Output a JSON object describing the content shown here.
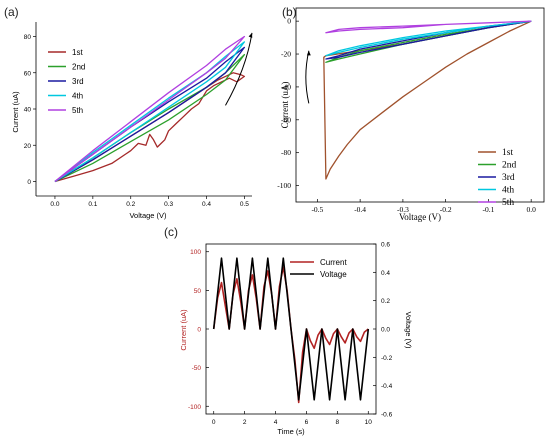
{
  "chart_data": [
    {
      "panel": "(a)",
      "type": "line",
      "xlabel": "Voltage (V)",
      "ylabel": "Current (uA)",
      "xlim": [
        -0.05,
        0.52
      ],
      "ylim": [
        -8,
        88
      ],
      "xticks": [
        "0.0",
        "0.1",
        "0.2",
        "0.3",
        "0.4",
        "0.5"
      ],
      "xtick_values": [
        0,
        0.1,
        0.2,
        0.3,
        0.4,
        0.5
      ],
      "yticks": [
        "0",
        "20",
        "40",
        "60",
        "80"
      ],
      "ytick_values": [
        0,
        20,
        40,
        60,
        80
      ],
      "legend_position": "top-left",
      "series": [
        {
          "name": "1st",
          "color": "#a52a2a",
          "x": [
            0,
            0.05,
            0.1,
            0.15,
            0.2,
            0.22,
            0.24,
            0.25,
            0.26,
            0.27,
            0.28,
            0.29,
            0.3,
            0.32,
            0.34,
            0.36,
            0.38,
            0.4,
            0.42,
            0.44,
            0.46,
            0.48,
            0.5,
            0.49,
            0.47,
            0.45,
            0.43,
            0.4,
            0.35,
            0.3,
            0.2,
            0.1,
            0
          ],
          "y": [
            0,
            3,
            6,
            10,
            17,
            21,
            20,
            26,
            23,
            19,
            21,
            23,
            28,
            32,
            36,
            40,
            43,
            50,
            53,
            55,
            57,
            55,
            58,
            59,
            60,
            58,
            56,
            52,
            45,
            38,
            25,
            12,
            0
          ]
        },
        {
          "name": "2nd",
          "color": "#2ca02c",
          "x": [
            0,
            0.1,
            0.2,
            0.3,
            0.4,
            0.45,
            0.5,
            0.45,
            0.4,
            0.3,
            0.2,
            0.1,
            0
          ],
          "y": [
            0,
            10,
            22,
            34,
            48,
            56,
            70,
            60,
            52,
            40,
            27,
            13,
            0
          ]
        },
        {
          "name": "3rd",
          "color": "#1a1aa0",
          "x": [
            0,
            0.1,
            0.2,
            0.3,
            0.4,
            0.45,
            0.5,
            0.45,
            0.4,
            0.3,
            0.2,
            0.1,
            0
          ],
          "y": [
            0,
            12,
            25,
            38,
            52,
            60,
            74,
            66,
            57,
            44,
            30,
            15,
            0
          ]
        },
        {
          "name": "4th",
          "color": "#00c8e0",
          "x": [
            0,
            0.1,
            0.2,
            0.3,
            0.4,
            0.45,
            0.5,
            0.45,
            0.4,
            0.3,
            0.2,
            0.1,
            0
          ],
          "y": [
            0,
            13,
            27,
            41,
            55,
            63,
            77,
            69,
            60,
            46,
            31,
            16,
            0
          ]
        },
        {
          "name": "5th",
          "color": "#b040e0",
          "x": [
            0,
            0.1,
            0.2,
            0.3,
            0.4,
            0.45,
            0.5,
            0.45,
            0.4,
            0.3,
            0.2,
            0.1,
            0
          ],
          "y": [
            0,
            15,
            30,
            45,
            60,
            68,
            80,
            73,
            64,
            49,
            33,
            17,
            0
          ]
        }
      ],
      "arrow": {
        "from": [
          0.45,
          42
        ],
        "to": [
          0.52,
          82
        ]
      }
    },
    {
      "panel": "(b)",
      "type": "line",
      "xlabel": "Voltage  (V)",
      "ylabel": "Current  (uA)",
      "xlim": [
        -0.55,
        0.03
      ],
      "ylim": [
        -110,
        8
      ],
      "xticks": [
        "-0.5",
        "-0.4",
        "-0.3",
        "-0.2",
        "-0.1",
        "0.0"
      ],
      "xtick_values": [
        -0.5,
        -0.4,
        -0.3,
        -0.2,
        -0.1,
        0
      ],
      "yticks": [
        "0",
        "-20",
        "-40",
        "-60",
        "-80",
        "-100"
      ],
      "ytick_values": [
        0,
        -20,
        -40,
        -60,
        -80,
        -100
      ],
      "legend_position": "bottom-right",
      "series": [
        {
          "name": "1st",
          "color": "#a0522d",
          "x": [
            0,
            -0.05,
            -0.1,
            -0.15,
            -0.2,
            -0.25,
            -0.3,
            -0.35,
            -0.4,
            -0.43,
            -0.45,
            -0.47,
            -0.48,
            -0.485,
            -0.48,
            -0.4,
            -0.3,
            -0.2,
            -0.1,
            0
          ],
          "y": [
            0,
            -6,
            -13,
            -20,
            -28,
            -37,
            -46,
            -56,
            -66,
            -75,
            -82,
            -90,
            -96,
            -22,
            -21,
            -18,
            -14,
            -9,
            -4,
            0
          ]
        },
        {
          "name": "2nd",
          "color": "#2ca02c",
          "x": [
            0,
            -0.1,
            -0.2,
            -0.3,
            -0.4,
            -0.45,
            -0.48,
            -0.45,
            -0.4,
            -0.3,
            -0.2,
            -0.1,
            0
          ],
          "y": [
            0,
            -4,
            -9,
            -14,
            -20,
            -23,
            -25,
            -22,
            -18,
            -13,
            -8,
            -4,
            0
          ]
        },
        {
          "name": "3rd",
          "color": "#1a1aa0",
          "x": [
            0,
            -0.1,
            -0.2,
            -0.3,
            -0.4,
            -0.45,
            -0.48,
            -0.45,
            -0.4,
            -0.3,
            -0.2,
            -0.1,
            0
          ],
          "y": [
            0,
            -4,
            -9,
            -14,
            -19,
            -22,
            -23,
            -21,
            -17,
            -12,
            -7,
            -3,
            0
          ]
        },
        {
          "name": "4th",
          "color": "#00c8e0",
          "x": [
            0,
            -0.1,
            -0.2,
            -0.3,
            -0.4,
            -0.45,
            -0.48,
            -0.45,
            -0.4,
            -0.3,
            -0.2,
            -0.1,
            0
          ],
          "y": [
            0,
            -3,
            -7,
            -11,
            -16,
            -19,
            -21,
            -18,
            -15,
            -10,
            -6,
            -3,
            0
          ]
        },
        {
          "name": "5th",
          "color": "#b040e0",
          "x": [
            0,
            -0.1,
            -0.2,
            -0.3,
            -0.4,
            -0.45,
            -0.48,
            -0.45,
            -0.4,
            -0.3,
            -0.2,
            -0.1,
            0
          ],
          "y": [
            0,
            -1,
            -2,
            -3,
            -4,
            -5,
            -7,
            -6,
            -5,
            -4,
            -2,
            -1,
            0
          ]
        }
      ],
      "arrow": {
        "from": [
          -0.52,
          -50
        ],
        "to": [
          -0.52,
          -18
        ]
      }
    },
    {
      "panel": "(c)",
      "type": "line",
      "xlabel": "Time (s)",
      "ylabel": "Current (uA)",
      "ylabel_right": "Voltage (V)",
      "xlim": [
        -0.5,
        10.5
      ],
      "ylim": [
        -110,
        110
      ],
      "ylim_right": [
        -0.6,
        0.6
      ],
      "xticks": [
        "0",
        "2",
        "4",
        "6",
        "8",
        "10"
      ],
      "xtick_values": [
        0,
        2,
        4,
        6,
        8,
        10
      ],
      "yticks": [
        "100",
        "50",
        "0",
        "-50",
        "-100"
      ],
      "ytick_values": [
        100,
        50,
        0,
        -50,
        -100
      ],
      "yticks_right": [
        "0.6",
        "0.4",
        "0.2",
        "0.0",
        "-0.2",
        "-0.4",
        "-0.6"
      ],
      "ytick_values_right": [
        0.6,
        0.4,
        0.2,
        0,
        -0.2,
        -0.4,
        -0.6
      ],
      "legend_position": "top-right",
      "series": [
        {
          "name": "Current",
          "color": "#b22222",
          "axis": "left",
          "x": [
            0,
            0.25,
            0.5,
            0.75,
            1,
            1.25,
            1.5,
            1.75,
            2,
            2.25,
            2.5,
            2.75,
            3,
            3.25,
            3.5,
            3.75,
            4,
            4.25,
            4.5,
            4.75,
            5,
            5.25,
            5.5,
            5.75,
            6,
            6.25,
            6.5,
            6.75,
            7,
            7.25,
            7.5,
            7.75,
            8,
            8.25,
            8.5,
            8.75,
            9,
            9.25,
            9.5,
            9.75,
            10
          ],
          "y": [
            0,
            40,
            60,
            30,
            0,
            45,
            65,
            35,
            0,
            50,
            70,
            40,
            0,
            55,
            75,
            45,
            0,
            55,
            80,
            50,
            0,
            -40,
            -95,
            -30,
            0,
            -15,
            -25,
            -8,
            0,
            -12,
            -20,
            -6,
            0,
            -10,
            -18,
            -5,
            0,
            -10,
            -16,
            -4,
            0
          ]
        },
        {
          "name": "Voltage",
          "color": "#000000",
          "axis": "right",
          "x": [
            0,
            0.5,
            1,
            1.5,
            2,
            2.5,
            3,
            3.5,
            4,
            4.5,
            5,
            5.5,
            6,
            6.5,
            7,
            7.5,
            8,
            8.5,
            9,
            9.5,
            10
          ],
          "y": [
            0,
            0.5,
            0,
            0.5,
            0,
            0.5,
            0,
            0.5,
            0,
            0.5,
            0,
            -0.5,
            0,
            -0.5,
            0,
            -0.5,
            0,
            -0.5,
            0,
            -0.5,
            0
          ]
        }
      ]
    }
  ]
}
